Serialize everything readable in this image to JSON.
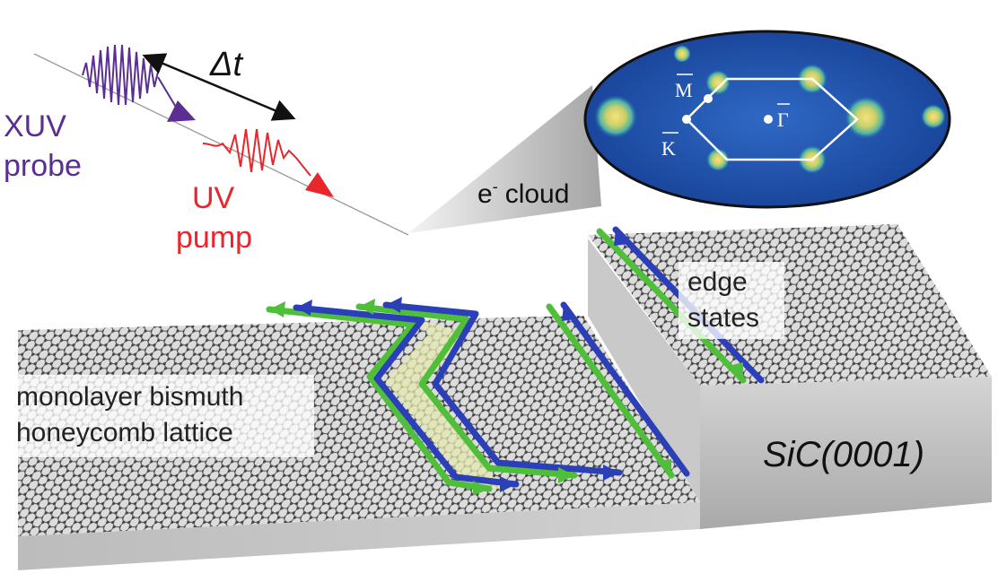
{
  "labels": {
    "xuv_line1": "XUV",
    "xuv_line2": "probe",
    "uv_line1": "UV",
    "uv_line2": "pump",
    "delta_t": "Δt",
    "e_cloud_e": "e",
    "e_cloud_sup": "-",
    "e_cloud_word": "cloud",
    "edge_line1": "edge",
    "edge_line2": "states",
    "lattice_line1": "monolayer bismuth",
    "lattice_line2": "honeycomb lattice",
    "substrate": "SiC(0001)",
    "bz_M": "M",
    "bz_K": "K",
    "bz_Gamma": "Γ"
  },
  "colors": {
    "xuv": "#5b2e91",
    "uv": "#e8262b",
    "edge_green": "#4fbf3a",
    "edge_blue": "#2b3fb8",
    "substrate_top": "#d9d9d9",
    "substrate_side": "#bdbdbd",
    "arpes_bg": "#1f4fae",
    "highlight": "#e6eab0"
  },
  "icons": [
    "xuv-pulse-icon",
    "uv-pulse-icon",
    "arrow-icon",
    "honeycomb-lattice-icon",
    "arpes-map-icon"
  ]
}
